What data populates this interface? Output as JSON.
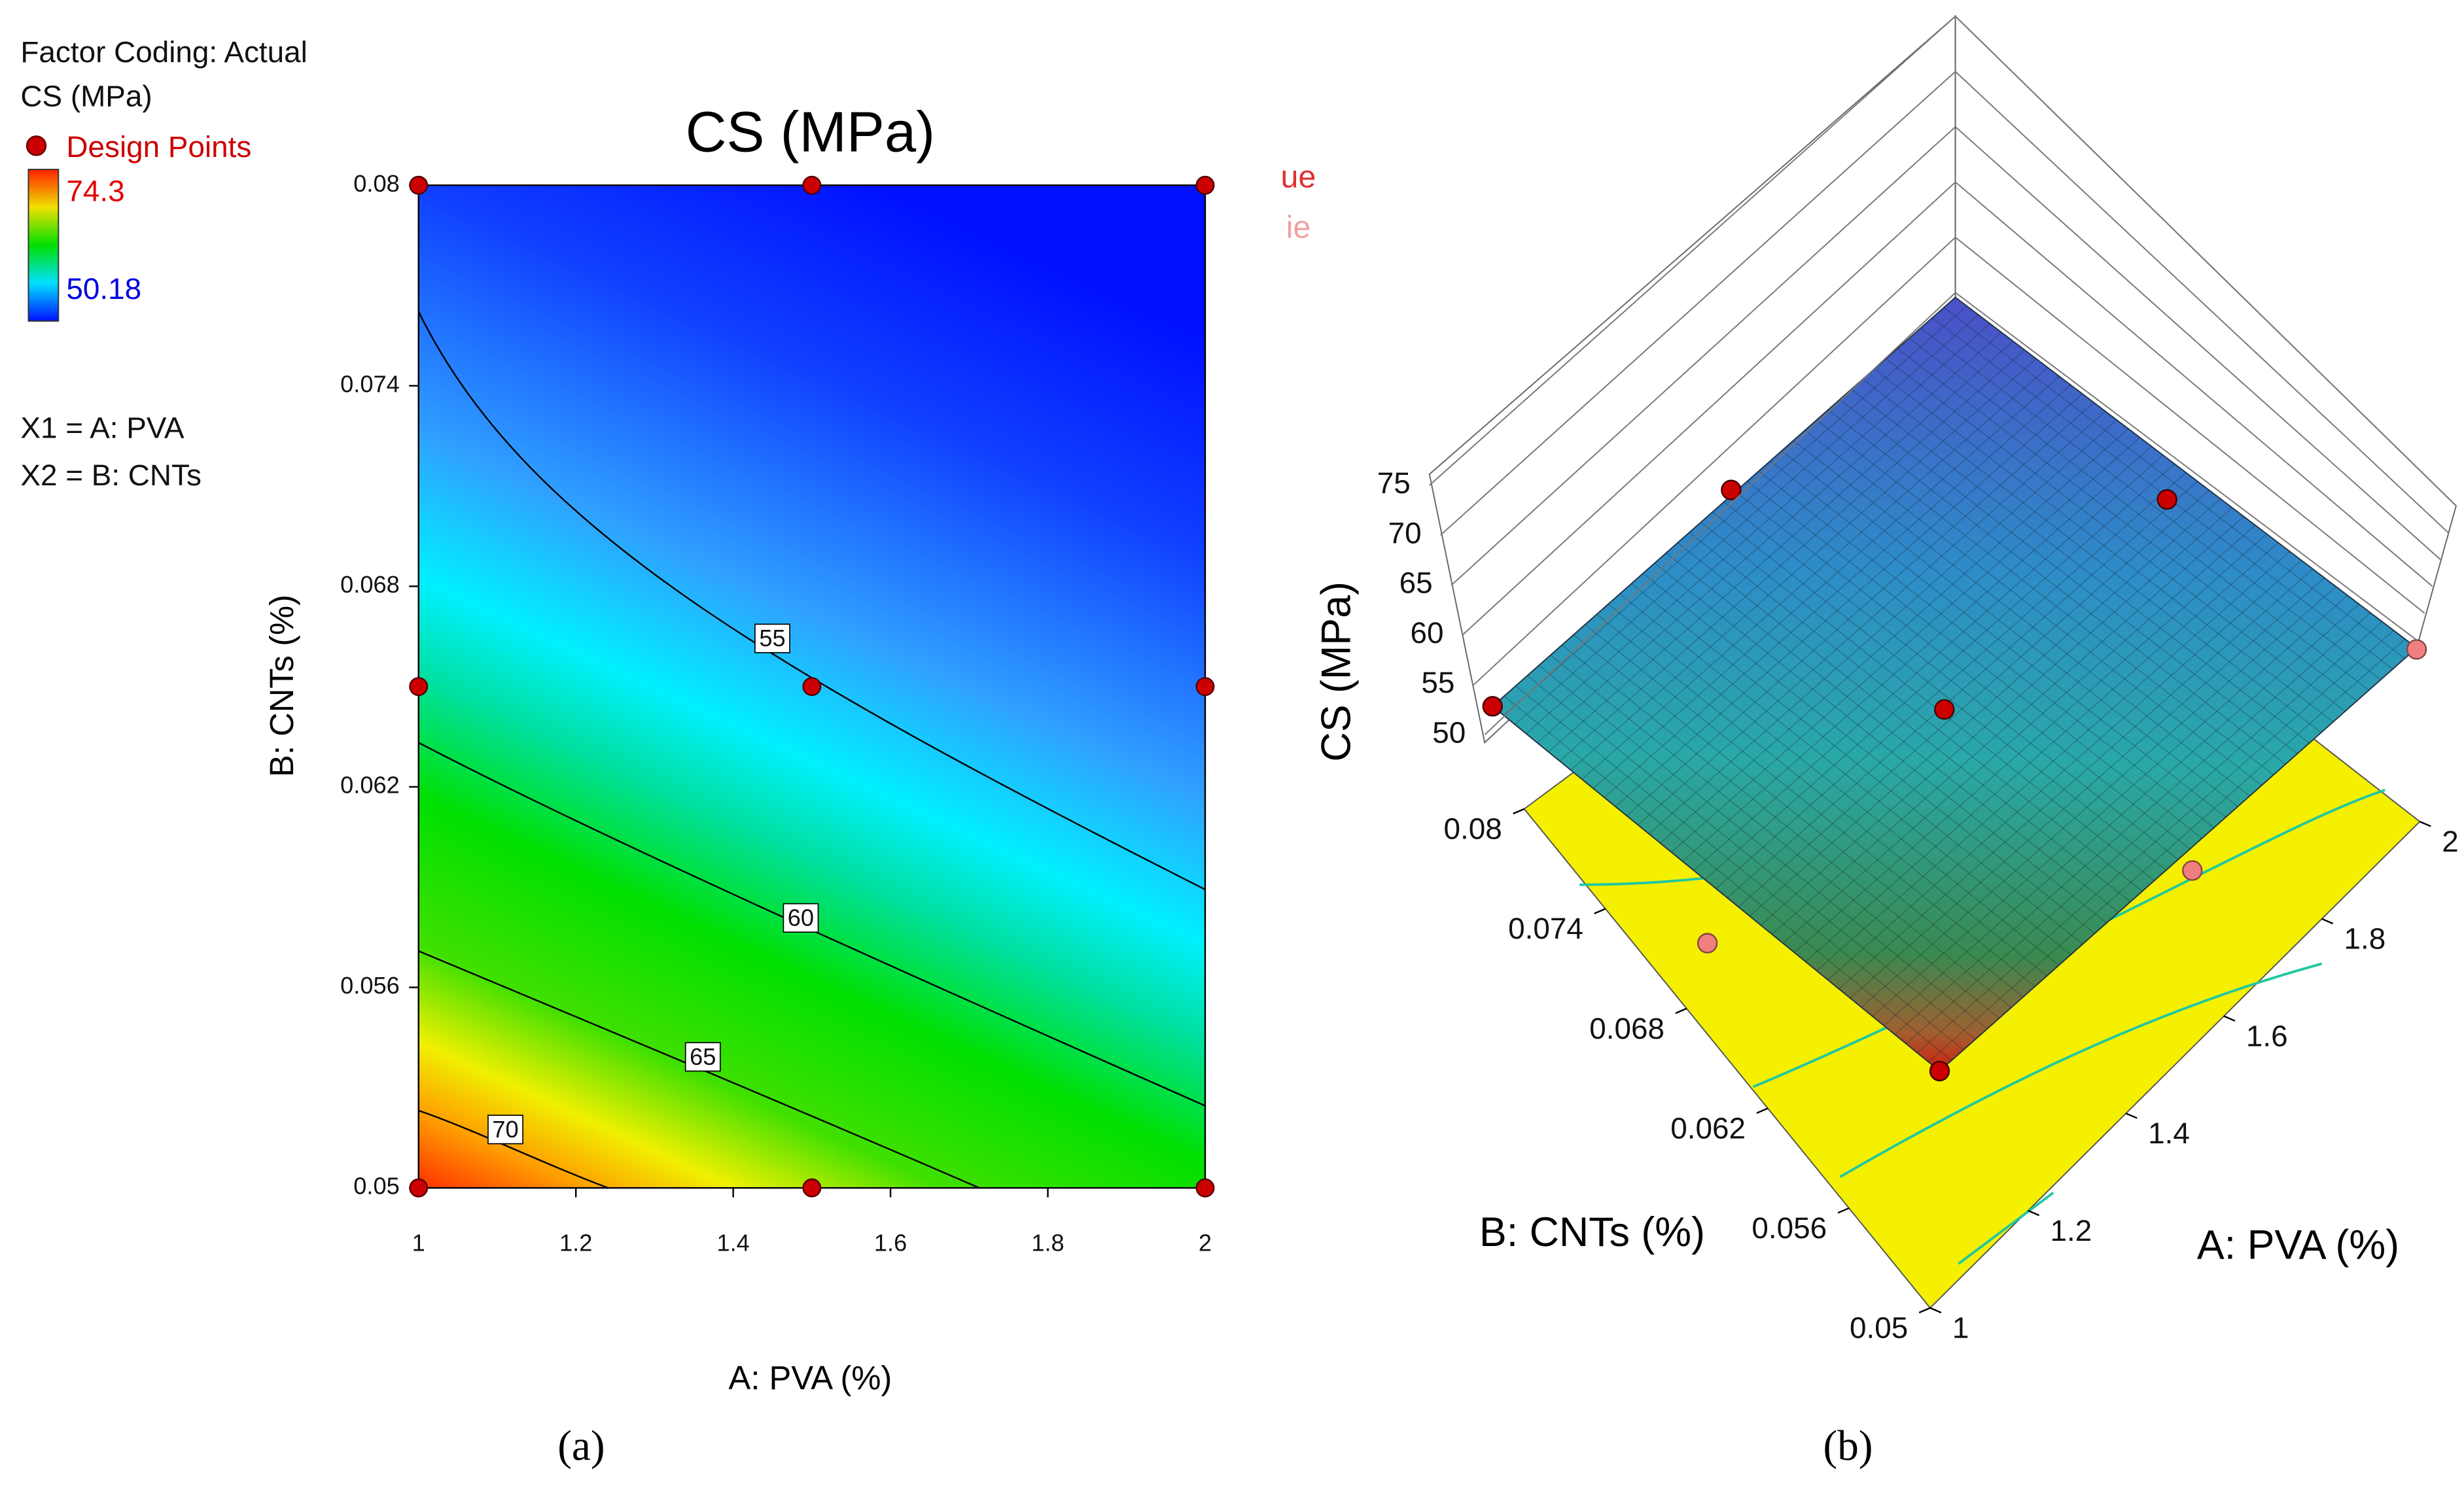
{
  "chart_data": [
    {
      "type": "contour",
      "title": "CS (MPa)",
      "legend": {
        "factor_coding": "Factor Coding: Actual",
        "response": "CS (MPa)",
        "design_points": "Design Points",
        "colorbar_max": 74.3,
        "colorbar_min": 50.18,
        "x1": "X1 = A: PVA",
        "x2": "X2 = B: CNTs"
      },
      "x_label": "A: PVA (%)",
      "y_label": "B: CNTs (%)",
      "xlim": [
        1,
        2
      ],
      "ylim": [
        0.05,
        0.08
      ],
      "xticks": [
        1,
        1.2,
        1.4,
        1.6,
        1.8,
        2
      ],
      "yticks": [
        0.05,
        0.056,
        0.062,
        0.068,
        0.074,
        0.08
      ],
      "contour_levels": [
        55,
        60,
        65,
        70
      ],
      "design_points": {
        "x": [
          1,
          1.5,
          2,
          1,
          1.5,
          2,
          1,
          1.5,
          2
        ],
        "y": [
          0.08,
          0.08,
          0.08,
          0.065,
          0.065,
          0.065,
          0.05,
          0.05,
          0.05
        ],
        "color": "#cc0000"
      },
      "annotations": [
        "ue",
        "ie"
      ],
      "caption": "(a)"
    },
    {
      "type": "surface",
      "z_label": "CS (MPa)",
      "x_label": "A: PVA (%)",
      "y_label": "B: CNTs (%)",
      "xlim": [
        1,
        2
      ],
      "ylim": [
        0.05,
        0.08
      ],
      "zlim": [
        50,
        75
      ],
      "xticks": [
        1,
        1.2,
        1.4,
        1.6,
        1.8,
        2
      ],
      "yticks": [
        0.05,
        0.056,
        0.062,
        0.068,
        0.074,
        0.08
      ],
      "zticks": [
        50,
        55,
        60,
        65,
        70,
        75
      ],
      "caption": "(b)"
    }
  ]
}
